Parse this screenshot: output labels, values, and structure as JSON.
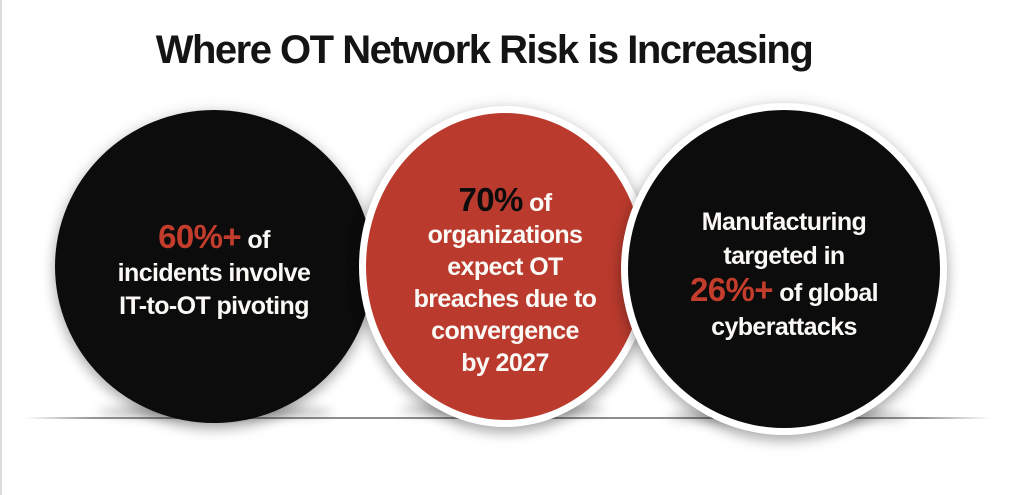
{
  "title": "Where OT Network Risk is Increasing",
  "colors": {
    "accent_red": "#BA3B2E",
    "accent_red_text": "#C33C2C",
    "circle_black": "#0D0C0C",
    "title_color": "#141414",
    "text_white": "#FBF9F6"
  },
  "circles": {
    "left": {
      "stat": "60%+",
      "after_stat": " of",
      "line2": "incidents involve",
      "line3": "IT-to-OT pivoting"
    },
    "middle": {
      "stat": "70%",
      "after_stat": " of",
      "line2": "organizations",
      "line3": "expect OT",
      "line4": "breaches due to",
      "line5": "convergence",
      "line6": "by 2027"
    },
    "right": {
      "line1": "Manufacturing",
      "line2": "targeted in",
      "stat": "26%+",
      "after_stat": " of global",
      "line4": "cyberattacks"
    }
  }
}
